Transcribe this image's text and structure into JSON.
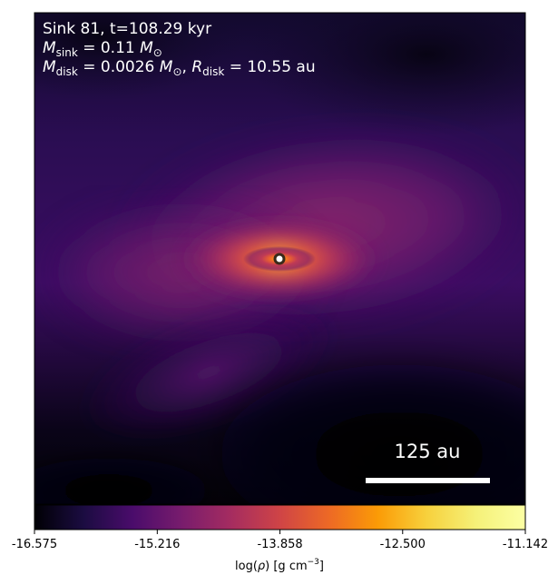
{
  "panel": {
    "title_line": "Sink 81, t=108.29 kyr",
    "msink": {
      "symbol": "M",
      "subscript": "sink",
      "equals": " = 0.11 ",
      "unit_symbol": "M",
      "unit_subscript": "⊙"
    },
    "mdisk": {
      "symbol": "M",
      "subscript": "disk",
      "equals": " = 0.0026 ",
      "unit_symbol": "M",
      "unit_subscript": "⊙",
      "separator": ", "
    },
    "rdisk": {
      "symbol": "R",
      "subscript": "disk",
      "equals": " = 10.55 au"
    },
    "scale_bar_label": "125 au"
  },
  "colorbar": {
    "colormap": "inferno",
    "min": -16.575,
    "max": -11.142,
    "tick_labels": [
      "-16.575",
      "-15.216",
      "-13.858",
      "-12.500",
      "-11.142"
    ],
    "label_text": "log(",
    "label_rho": "ρ",
    "label_units": ") [g cm",
    "label_exp": "−3",
    "label_end": "]"
  },
  "colors": {
    "background_dark": "#0c0622",
    "mid_purple": "#4a0c6b",
    "mid_magenta": "#9a2865",
    "orange": "#f0682a",
    "yellow": "#fcffa4",
    "sink_marker": "#ffffff"
  }
}
